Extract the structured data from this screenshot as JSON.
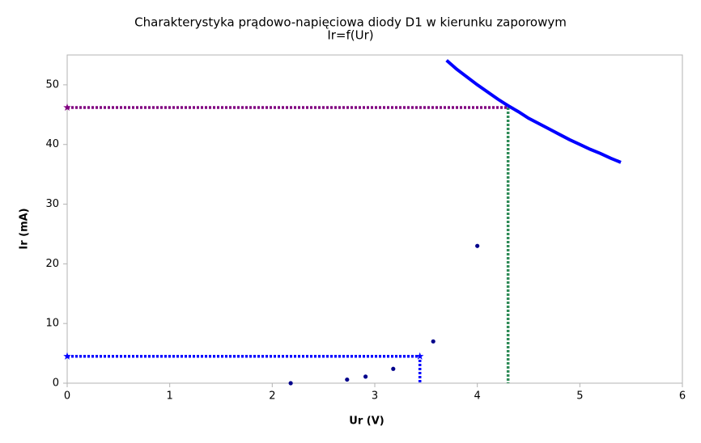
{
  "chart_data": {
    "type": "scatter",
    "title": "Charakterystyka prądowo-napięciowa diody D1 w kierunku zaporowym",
    "subtitle": "Ir=f(Ur)",
    "x_label": "Ur (V)",
    "y_label": "Ir (mA)",
    "xlim": [
      0,
      6
    ],
    "ylim": [
      0,
      55
    ],
    "xticks": [
      0,
      1,
      2,
      3,
      4,
      5,
      6
    ],
    "yticks": [
      0,
      10,
      20,
      30,
      40,
      50
    ],
    "series": [
      {
        "style": "dotted",
        "color": "#800080",
        "x": [
          0,
          4.3
        ],
        "values": [
          46.2,
          46.2
        ]
      },
      {
        "style": "dotted",
        "color": "#2e8b57",
        "x": [
          4.3,
          4.3
        ],
        "values": [
          46.2,
          0
        ]
      },
      {
        "style": "dotted",
        "color": "#0000ff",
        "x": [
          0,
          3.44,
          3.44
        ],
        "values": [
          4.5,
          4.5,
          0
        ]
      },
      {
        "style": "stars",
        "color": "#800080",
        "x": [
          0
        ],
        "values": [
          46.2
        ]
      },
      {
        "style": "stars",
        "color": "#0000ff",
        "x": [
          0,
          3.44
        ],
        "values": [
          4.5,
          4.5
        ]
      },
      {
        "style": "curve",
        "color": "#0000ff",
        "x": [
          3.7,
          3.8,
          3.9,
          4.0,
          4.1,
          4.2,
          4.3,
          4.4,
          4.5,
          4.6,
          4.7,
          4.8,
          4.9,
          5.0,
          5.1,
          5.2,
          5.3,
          5.4
        ],
        "values": [
          54.1,
          52.6,
          51.3,
          50.0,
          48.8,
          47.6,
          46.5,
          45.5,
          44.4,
          43.5,
          42.6,
          41.7,
          40.8,
          40.0,
          39.2,
          38.5,
          37.7,
          37.0
        ]
      },
      {
        "style": "dots",
        "color": "#00008b",
        "x": [
          2.18,
          2.73,
          2.91,
          3.18,
          3.57,
          4.0
        ],
        "values": [
          0,
          0.6,
          1.1,
          2.4,
          7.0,
          23.0
        ]
      }
    ]
  }
}
